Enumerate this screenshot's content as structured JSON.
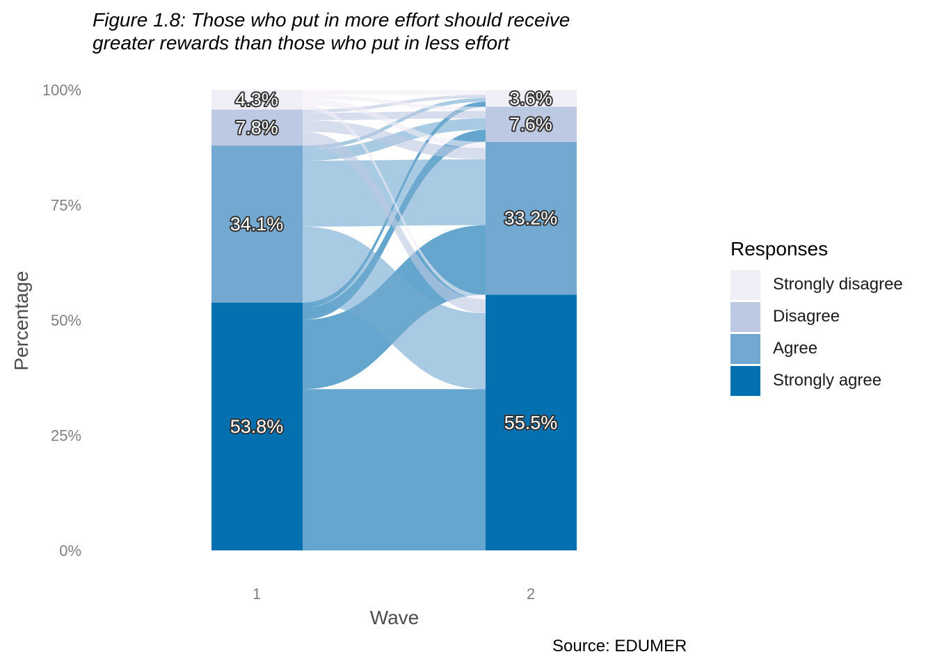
{
  "title_lines": [
    "Figure 1.8: Those who put in more effort should receive",
    "greater rewards than those who put in less effort"
  ],
  "source": "Source: EDUMER",
  "legend": {
    "title": "Responses",
    "items": [
      {
        "label": "Strongly disagree",
        "color": "#f0eef6"
      },
      {
        "label": "Disagree",
        "color": "#bdc8e2"
      },
      {
        "label": "Agree",
        "color": "#73a9d0"
      },
      {
        "label": "Strongly agree",
        "color": "#0570b0"
      }
    ]
  },
  "chart_data": {
    "type": "alluvial",
    "xlabel": "Wave",
    "ylabel": "Percentage",
    "ylim": [
      0,
      100
    ],
    "y_ticks": [
      "0%",
      "25%",
      "50%",
      "75%",
      "100%"
    ],
    "categories": [
      "1",
      "2"
    ],
    "levels": [
      "Strongly agree",
      "Agree",
      "Disagree",
      "Strongly disagree"
    ],
    "waves": [
      {
        "name": "1",
        "values": {
          "Strongly agree": 53.8,
          "Agree": 34.1,
          "Disagree": 7.8,
          "Strongly disagree": 4.3
        },
        "labels": [
          "53.8%",
          "34.1%",
          "7.8%",
          "4.3%"
        ]
      },
      {
        "name": "2",
        "values": {
          "Strongly agree": 55.5,
          "Agree": 33.2,
          "Disagree": 7.6,
          "Strongly disagree": 3.6
        },
        "labels": [
          "55.5%",
          "33.2%",
          "7.6%",
          "3.6%"
        ]
      }
    ],
    "flows": [
      {
        "from": "Strongly agree",
        "to": "Strongly agree",
        "value": 35.0
      },
      {
        "from": "Strongly agree",
        "to": "Agree",
        "value": 15.1
      },
      {
        "from": "Strongly agree",
        "to": "Disagree",
        "value": 2.6
      },
      {
        "from": "Strongly agree",
        "to": "Strongly disagree",
        "value": 1.1
      },
      {
        "from": "Agree",
        "to": "Strongly agree",
        "value": 16.5
      },
      {
        "from": "Agree",
        "to": "Agree",
        "value": 14.3
      },
      {
        "from": "Agree",
        "to": "Disagree",
        "value": 2.5
      },
      {
        "from": "Agree",
        "to": "Strongly disagree",
        "value": 0.8
      },
      {
        "from": "Disagree",
        "to": "Strongly agree",
        "value": 3.0
      },
      {
        "from": "Disagree",
        "to": "Agree",
        "value": 2.5
      },
      {
        "from": "Disagree",
        "to": "Disagree",
        "value": 1.6
      },
      {
        "from": "Disagree",
        "to": "Strongly disagree",
        "value": 0.7
      },
      {
        "from": "Strongly disagree",
        "to": "Strongly agree",
        "value": 1.0
      },
      {
        "from": "Strongly disagree",
        "to": "Agree",
        "value": 1.3
      },
      {
        "from": "Strongly disagree",
        "to": "Disagree",
        "value": 0.9
      },
      {
        "from": "Strongly disagree",
        "to": "Strongly disagree",
        "value": 1.0
      }
    ]
  }
}
